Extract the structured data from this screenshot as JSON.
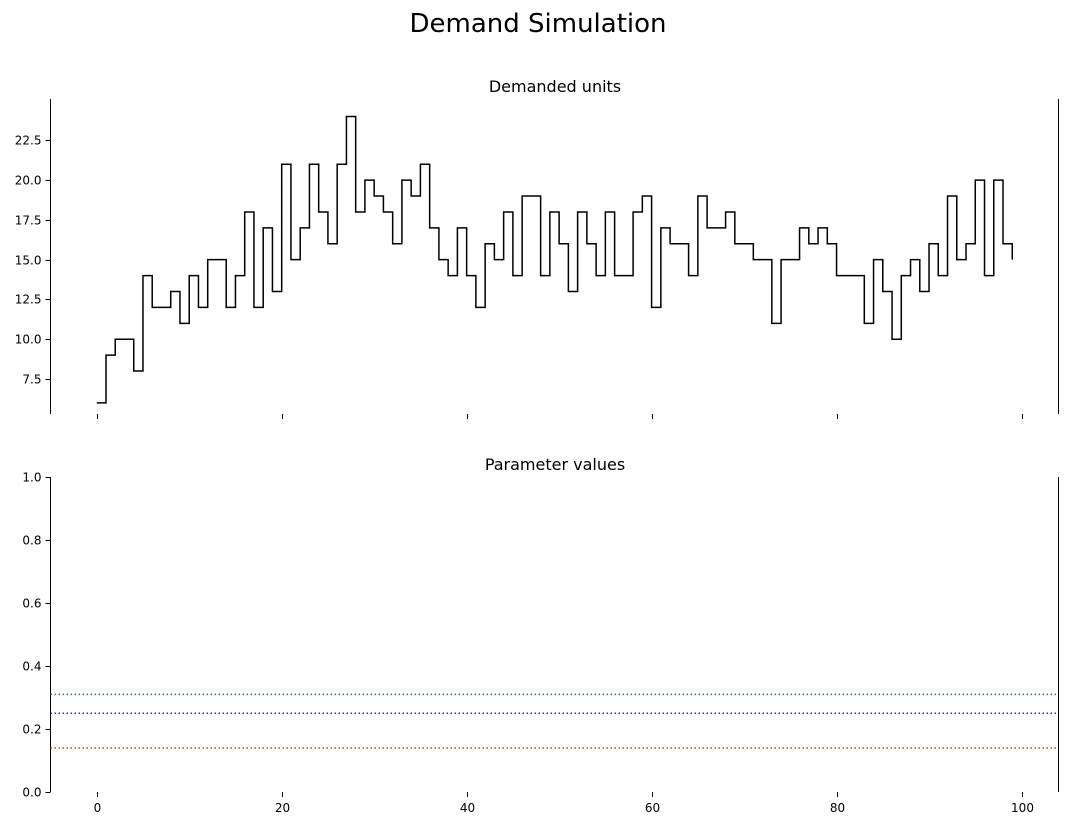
{
  "figure": {
    "title": "Demand Simulation"
  },
  "chart_data": [
    {
      "type": "line",
      "drawstyle": "steps-post",
      "title": "Demanded units",
      "xlabel": "",
      "ylabel": "",
      "xlim": [
        -5,
        104
      ],
      "ylim": [
        5.3,
        25.1
      ],
      "xticks": [
        0,
        20,
        40,
        60,
        80,
        100
      ],
      "show_xticklabels": false,
      "yticks": [
        7.5,
        10.0,
        12.5,
        15.0,
        17.5,
        20.0,
        22.5
      ],
      "ytick_labels": [
        "7.5",
        "10.0",
        "12.5",
        "15.0",
        "17.5",
        "20.0",
        "22.5"
      ],
      "grid": false,
      "series": [
        {
          "color": "#000000",
          "x": [
            0,
            1,
            2,
            3,
            4,
            5,
            6,
            7,
            8,
            9,
            10,
            11,
            12,
            13,
            14,
            15,
            16,
            17,
            18,
            19,
            20,
            21,
            22,
            23,
            24,
            25,
            26,
            27,
            28,
            29,
            30,
            31,
            32,
            33,
            34,
            35,
            36,
            37,
            38,
            39,
            40,
            41,
            42,
            43,
            44,
            45,
            46,
            47,
            48,
            49,
            50,
            51,
            52,
            53,
            54,
            55,
            56,
            57,
            58,
            59,
            60,
            61,
            62,
            63,
            64,
            65,
            66,
            67,
            68,
            69,
            70,
            71,
            72,
            73,
            74,
            75,
            76,
            77,
            78,
            79,
            80,
            81,
            82,
            83,
            84,
            85,
            86,
            87,
            88,
            89,
            90,
            91,
            92,
            93,
            94,
            95,
            96,
            97,
            98,
            99
          ],
          "values": [
            6,
            9,
            10,
            10,
            8,
            14,
            12,
            12,
            13,
            11,
            14,
            12,
            15,
            15,
            12,
            14,
            18,
            12,
            17,
            13,
            21,
            15,
            17,
            21,
            18,
            16,
            21,
            24,
            18,
            20,
            19,
            18,
            16,
            20,
            19,
            21,
            17,
            15,
            14,
            17,
            14,
            12,
            16,
            15,
            18,
            14,
            19,
            19,
            14,
            18,
            16,
            13,
            18,
            16,
            14,
            18,
            14,
            14,
            18,
            19,
            12,
            17,
            16,
            16,
            14,
            19,
            17,
            17,
            18,
            16,
            16,
            15,
            15,
            11,
            15,
            15,
            17,
            16,
            17,
            16,
            14,
            14,
            14,
            11,
            15,
            13,
            10,
            14,
            15,
            13,
            16,
            14,
            19,
            15,
            16,
            20,
            14,
            20,
            16,
            15
          ]
        }
      ]
    },
    {
      "type": "line",
      "title": "Parameter values",
      "xlabel": "",
      "ylabel": "",
      "xlim": [
        -5,
        104
      ],
      "ylim": [
        0,
        1
      ],
      "xticks": [
        0,
        20,
        40,
        60,
        80,
        100
      ],
      "xtick_labels": [
        "0",
        "20",
        "40",
        "60",
        "80",
        "100"
      ],
      "yticks": [
        0.0,
        0.2,
        0.4,
        0.6,
        0.8,
        1.0
      ],
      "ytick_labels": [
        "0.0",
        "0.2",
        "0.4",
        "0.6",
        "0.8",
        "1.0"
      ],
      "grid": false,
      "series": [
        {
          "linestyle": "dotted",
          "color": "#2e8b3e",
          "value": 0.31
        },
        {
          "linestyle": "dotted",
          "color": "#3333cc",
          "value": 0.25
        },
        {
          "linestyle": "dotted",
          "color": "#e03030",
          "value": 0.14
        }
      ]
    }
  ]
}
